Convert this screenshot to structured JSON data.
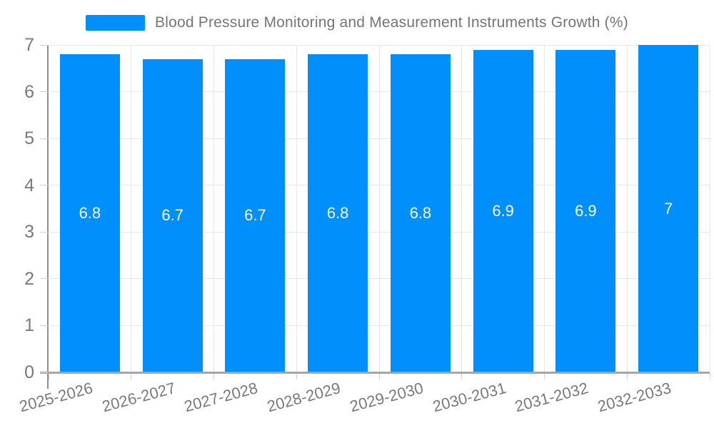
{
  "chart_data": {
    "type": "bar",
    "title": "Blood Pressure Monitoring and Measurement Instruments Growth (%)",
    "categories": [
      "2025-2026",
      "2026-2027",
      "2027-2028",
      "2028-2029",
      "2029-2030",
      "2030-2031",
      "2031-2032",
      "2032-2033"
    ],
    "values": [
      6.8,
      6.7,
      6.7,
      6.8,
      6.8,
      6.9,
      6.9,
      7
    ],
    "value_labels": [
      "6.8",
      "6.7",
      "6.7",
      "6.8",
      "6.8",
      "6.9",
      "6.9",
      "7"
    ],
    "xlabel": "",
    "ylabel": "",
    "ylim": [
      0,
      7
    ],
    "yticks": [
      0,
      1,
      2,
      3,
      4,
      5,
      6,
      7
    ],
    "grid": true,
    "legend_position": "top",
    "colors": {
      "bar": "#008FFB",
      "bar_label_text": "#ffffff",
      "axis_text": "#78797a",
      "legend_text": "#757575",
      "gridline": "#e7e7e7",
      "axis_line": "#8f8f8f"
    }
  }
}
